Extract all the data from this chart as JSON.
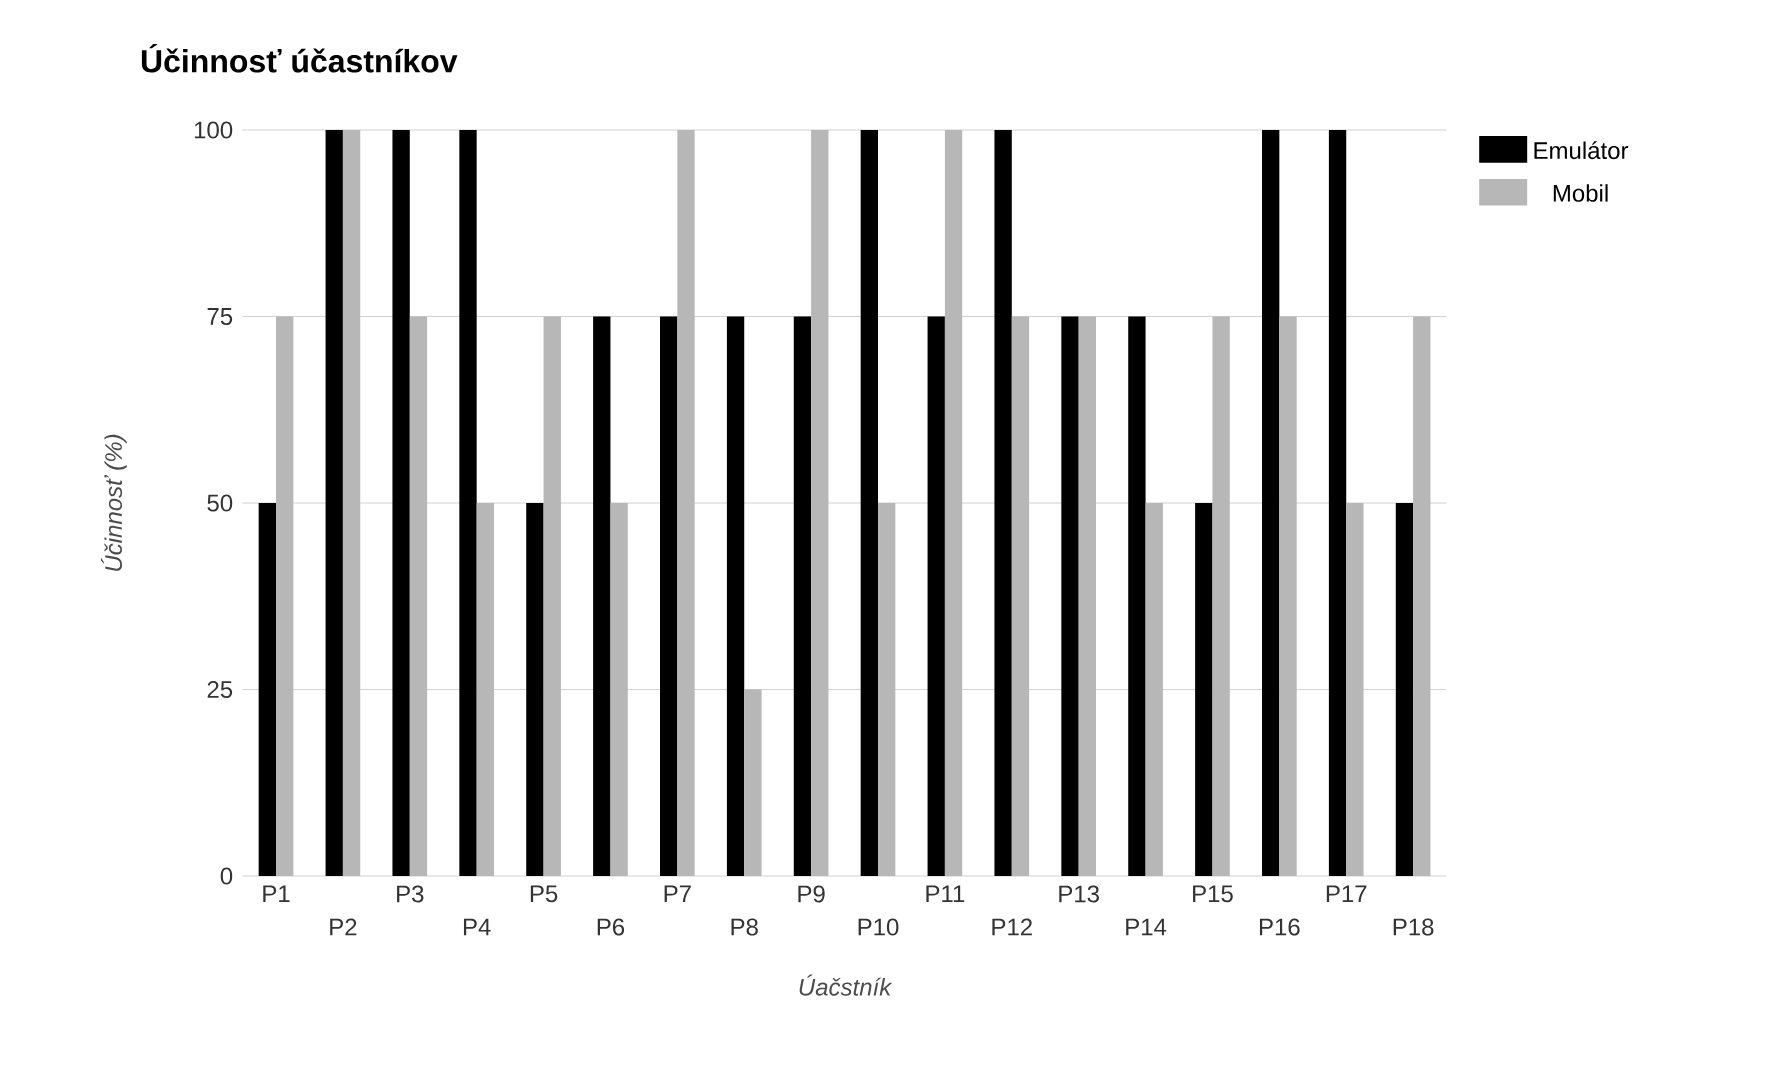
{
  "chart_data": {
    "type": "bar",
    "title": "Účinnosť účastníkov",
    "xlabel": "Úačstník",
    "ylabel": "Účinnosť (%)",
    "categories": [
      "P1",
      "P2",
      "P3",
      "P4",
      "P5",
      "P6",
      "P7",
      "P8",
      "P9",
      "P10",
      "P11",
      "P12",
      "P13",
      "P14",
      "P15",
      "P16",
      "P17",
      "P18"
    ],
    "series": [
      {
        "name": "Emulátor",
        "color": "#000000",
        "values": [
          50,
          100,
          100,
          100,
          50,
          75,
          75,
          75,
          75,
          100,
          75,
          100,
          75,
          75,
          50,
          100,
          100,
          50
        ]
      },
      {
        "name": "Mobil",
        "color": "#b7b7b7",
        "values": [
          75,
          100,
          75,
          50,
          75,
          50,
          100,
          25,
          100,
          50,
          100,
          75,
          75,
          50,
          75,
          75,
          50,
          75
        ]
      }
    ],
    "ylim": [
      0,
      100
    ],
    "yticks": [
      0,
      25,
      50,
      75,
      100
    ],
    "grid": "y",
    "legend": "top right"
  }
}
